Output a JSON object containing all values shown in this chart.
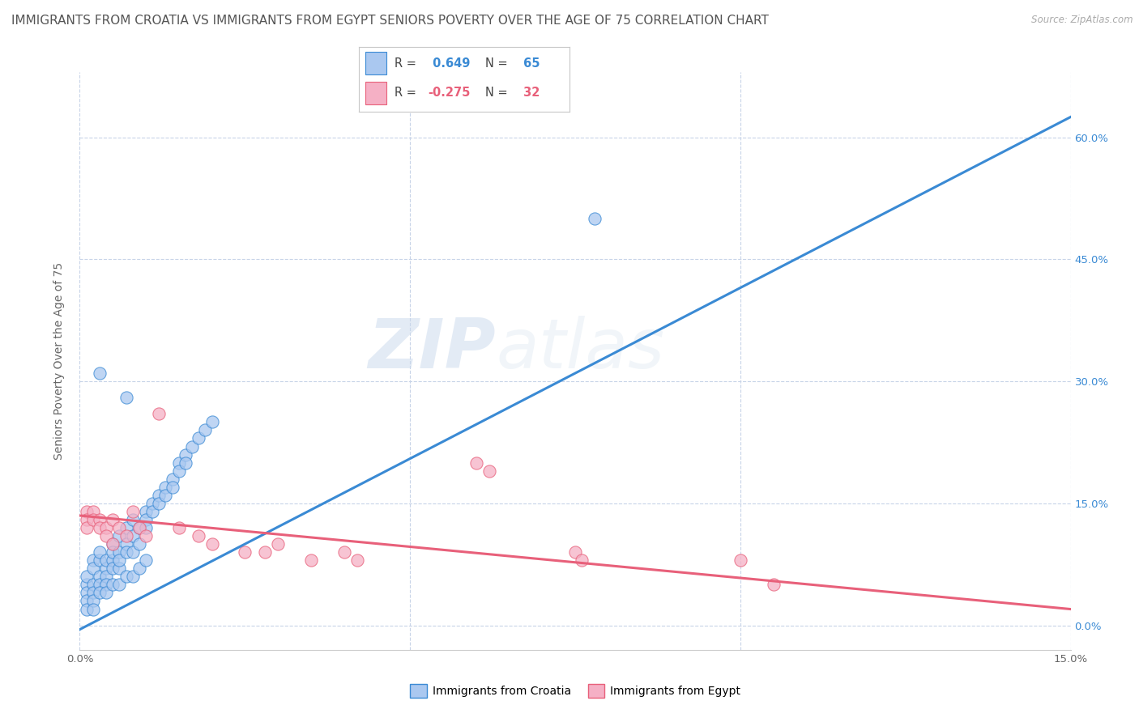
{
  "title": "IMMIGRANTS FROM CROATIA VS IMMIGRANTS FROM EGYPT SENIORS POVERTY OVER THE AGE OF 75 CORRELATION CHART",
  "source": "Source: ZipAtlas.com",
  "ylabel": "Seniors Poverty Over the Age of 75",
  "xlim": [
    0.0,
    0.15
  ],
  "ylim": [
    -0.03,
    0.68
  ],
  "croatia_color": "#aac8f0",
  "croatia_line_color": "#3a8ad4",
  "egypt_color": "#f5b0c5",
  "egypt_line_color": "#e8607a",
  "R_croatia": 0.649,
  "N_croatia": 65,
  "R_egypt": -0.275,
  "N_egypt": 32,
  "watermark_zip": "ZIP",
  "watermark_atlas": "atlas",
  "croatia_trendline": [
    0.0,
    0.15,
    -0.005,
    0.625
  ],
  "egypt_trendline": [
    0.0,
    0.15,
    0.135,
    0.02
  ],
  "croatia_scatter": [
    [
      0.001,
      0.05
    ],
    [
      0.001,
      0.04
    ],
    [
      0.001,
      0.03
    ],
    [
      0.001,
      0.06
    ],
    [
      0.002,
      0.08
    ],
    [
      0.002,
      0.07
    ],
    [
      0.002,
      0.05
    ],
    [
      0.002,
      0.04
    ],
    [
      0.003,
      0.06
    ],
    [
      0.003,
      0.08
    ],
    [
      0.003,
      0.05
    ],
    [
      0.003,
      0.09
    ],
    [
      0.004,
      0.07
    ],
    [
      0.004,
      0.06
    ],
    [
      0.004,
      0.08
    ],
    [
      0.004,
      0.05
    ],
    [
      0.005,
      0.1
    ],
    [
      0.005,
      0.08
    ],
    [
      0.005,
      0.07
    ],
    [
      0.005,
      0.09
    ],
    [
      0.006,
      0.11
    ],
    [
      0.006,
      0.09
    ],
    [
      0.006,
      0.07
    ],
    [
      0.006,
      0.08
    ],
    [
      0.007,
      0.12
    ],
    [
      0.007,
      0.1
    ],
    [
      0.007,
      0.09
    ],
    [
      0.007,
      0.28
    ],
    [
      0.008,
      0.13
    ],
    [
      0.008,
      0.11
    ],
    [
      0.008,
      0.09
    ],
    [
      0.009,
      0.12
    ],
    [
      0.009,
      0.1
    ],
    [
      0.01,
      0.14
    ],
    [
      0.01,
      0.13
    ],
    [
      0.01,
      0.12
    ],
    [
      0.011,
      0.15
    ],
    [
      0.011,
      0.14
    ],
    [
      0.012,
      0.16
    ],
    [
      0.012,
      0.15
    ],
    [
      0.013,
      0.17
    ],
    [
      0.013,
      0.16
    ],
    [
      0.014,
      0.18
    ],
    [
      0.014,
      0.17
    ],
    [
      0.015,
      0.2
    ],
    [
      0.015,
      0.19
    ],
    [
      0.016,
      0.21
    ],
    [
      0.016,
      0.2
    ],
    [
      0.017,
      0.22
    ],
    [
      0.018,
      0.23
    ],
    [
      0.019,
      0.24
    ],
    [
      0.02,
      0.25
    ],
    [
      0.003,
      0.31
    ],
    [
      0.001,
      0.02
    ],
    [
      0.002,
      0.03
    ],
    [
      0.002,
      0.02
    ],
    [
      0.003,
      0.04
    ],
    [
      0.004,
      0.04
    ],
    [
      0.005,
      0.05
    ],
    [
      0.006,
      0.05
    ],
    [
      0.007,
      0.06
    ],
    [
      0.008,
      0.06
    ],
    [
      0.009,
      0.07
    ],
    [
      0.01,
      0.08
    ],
    [
      0.078,
      0.5
    ]
  ],
  "egypt_scatter": [
    [
      0.001,
      0.14
    ],
    [
      0.001,
      0.13
    ],
    [
      0.001,
      0.12
    ],
    [
      0.002,
      0.14
    ],
    [
      0.002,
      0.13
    ],
    [
      0.003,
      0.13
    ],
    [
      0.003,
      0.12
    ],
    [
      0.004,
      0.12
    ],
    [
      0.004,
      0.11
    ],
    [
      0.005,
      0.13
    ],
    [
      0.005,
      0.1
    ],
    [
      0.006,
      0.12
    ],
    [
      0.007,
      0.11
    ],
    [
      0.008,
      0.14
    ],
    [
      0.009,
      0.12
    ],
    [
      0.01,
      0.11
    ],
    [
      0.012,
      0.26
    ],
    [
      0.015,
      0.12
    ],
    [
      0.018,
      0.11
    ],
    [
      0.02,
      0.1
    ],
    [
      0.025,
      0.09
    ],
    [
      0.028,
      0.09
    ],
    [
      0.03,
      0.1
    ],
    [
      0.035,
      0.08
    ],
    [
      0.04,
      0.09
    ],
    [
      0.042,
      0.08
    ],
    [
      0.06,
      0.2
    ],
    [
      0.062,
      0.19
    ],
    [
      0.075,
      0.09
    ],
    [
      0.076,
      0.08
    ],
    [
      0.1,
      0.08
    ],
    [
      0.105,
      0.05
    ]
  ],
  "background_color": "#ffffff",
  "grid_color": "#c8d4e8",
  "title_fontsize": 11,
  "axis_label_fontsize": 10,
  "tick_fontsize": 9.5
}
